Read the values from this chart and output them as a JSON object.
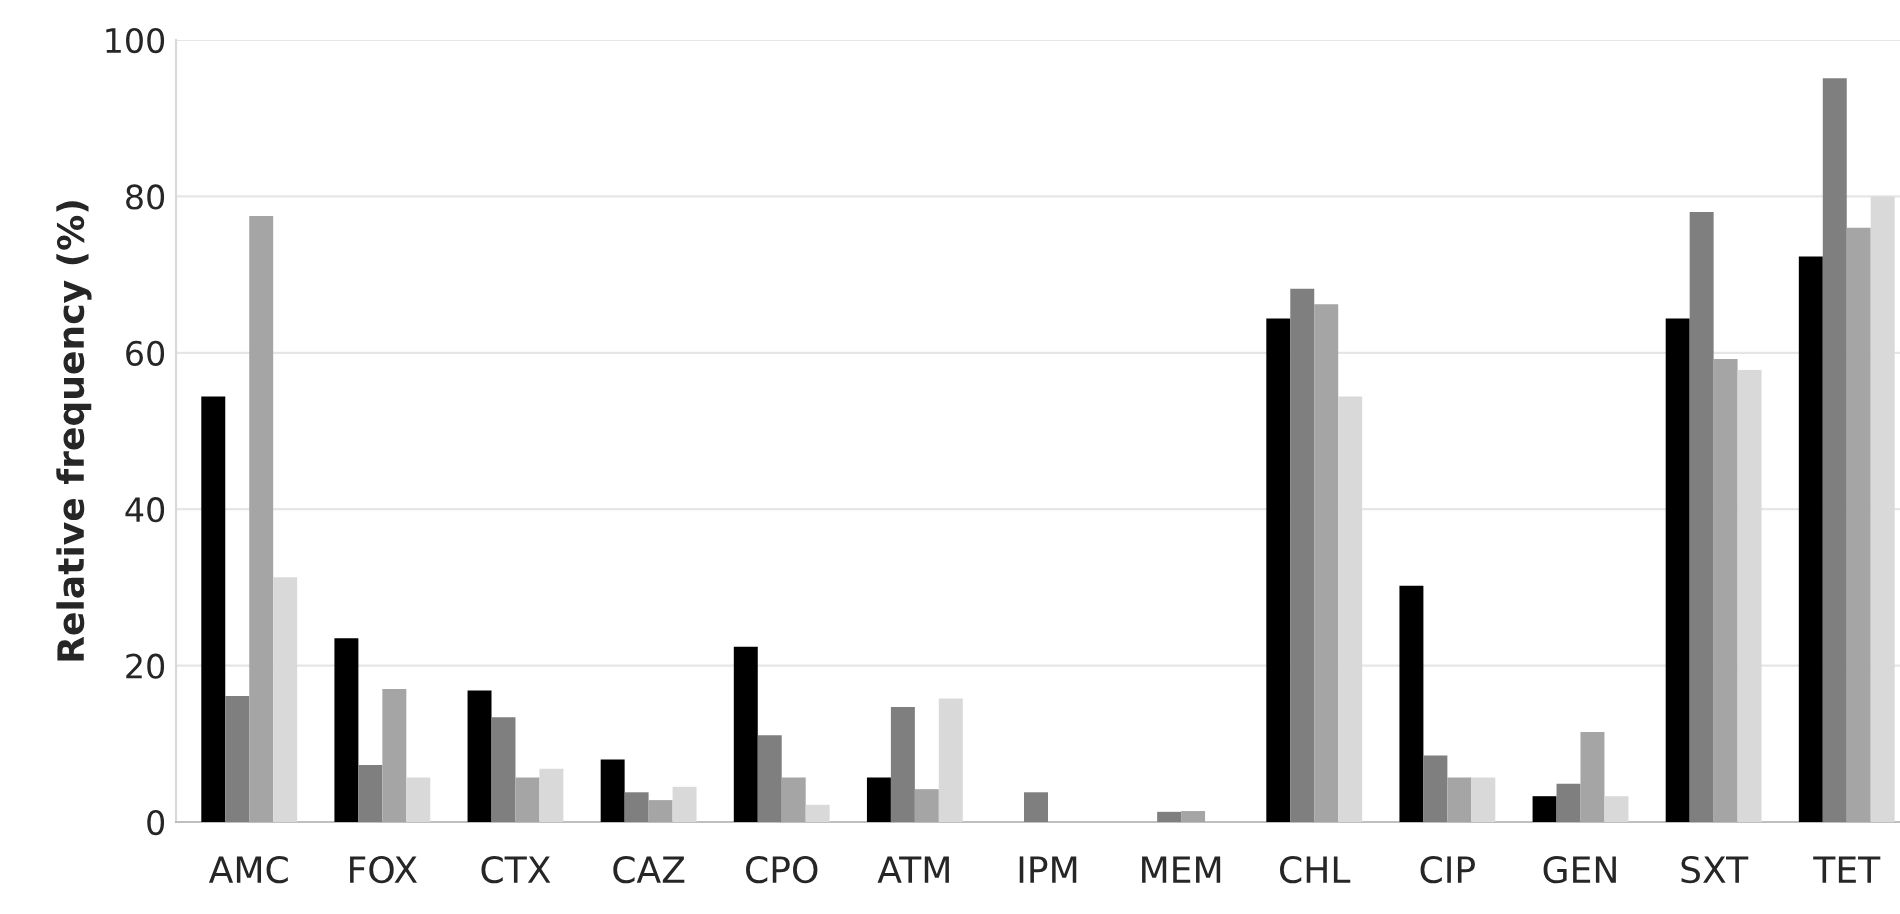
{
  "chart_data": {
    "type": "bar",
    "ylabel": "Relative frequency (%)",
    "categories": [
      "AMC",
      "FOX",
      "CTX",
      "CAZ",
      "CPO",
      "ATM",
      "IPM",
      "MEM",
      "CHL",
      "CIP",
      "GEN",
      "SXT",
      "TET"
    ],
    "series": [
      {
        "color": "#000000",
        "values": [
          54.4,
          23.5,
          16.8,
          8.0,
          22.4,
          5.7,
          null,
          null,
          64.4,
          30.2,
          3.3,
          64.4,
          72.3
        ]
      },
      {
        "color": "#7f7f7f",
        "values": [
          16.1,
          7.3,
          13.4,
          3.8,
          11.1,
          14.7,
          3.8,
          1.3,
          68.2,
          8.5,
          4.9,
          78.0,
          95.1
        ]
      },
      {
        "color": "#a5a5a5",
        "values": [
          77.5,
          17.0,
          5.7,
          2.8,
          5.7,
          4.2,
          null,
          1.4,
          66.2,
          5.7,
          11.5,
          59.2,
          76.0
        ]
      },
      {
        "color": "#d9d9d9",
        "values": [
          31.3,
          5.7,
          6.8,
          4.5,
          2.2,
          15.8,
          null,
          null,
          54.4,
          5.7,
          3.3,
          57.8,
          80.0
        ]
      }
    ],
    "ylim": [
      0,
      100
    ],
    "yticks": [
      0,
      20,
      40,
      60,
      80,
      100
    ],
    "grid": "y",
    "legend": false
  }
}
